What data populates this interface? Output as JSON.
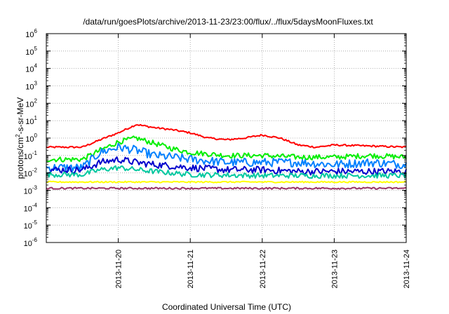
{
  "chart_data": {
    "type": "line",
    "title": "/data/run/goesPlots/archive/2013-11-23/23:00/flux/../flux/5daysMoonFluxes.txt",
    "xlabel": "Coordinated Universal Time (UTC)",
    "ylabel": "protons/cm²-s-sr-MeV",
    "ylabel_parts": {
      "pre": "protons/cm",
      "sup": "2",
      "post": "-s-sr-MeV"
    },
    "yscale": "log",
    "ylim": [
      1e-06,
      1000000.0
    ],
    "xlim": [
      "2013-11-19 00:00",
      "2013-11-24 00:00"
    ],
    "x_ticks": [
      "2013-11-20",
      "2013-11-21",
      "2013-11-22",
      "2013-11-23",
      "2013-11-24"
    ],
    "y_ticks": [
      {
        "base": "10",
        "exp": "-6"
      },
      {
        "base": "10",
        "exp": "-5"
      },
      {
        "base": "10",
        "exp": "-4"
      },
      {
        "base": "10",
        "exp": "-3"
      },
      {
        "base": "10",
        "exp": "-2"
      },
      {
        "base": "10",
        "exp": "-1"
      },
      {
        "base": "10",
        "exp": "0"
      },
      {
        "base": "10",
        "exp": "1"
      },
      {
        "base": "10",
        "exp": "2"
      },
      {
        "base": "10",
        "exp": "3"
      },
      {
        "base": "10",
        "exp": "4"
      },
      {
        "base": "10",
        "exp": "5"
      },
      {
        "base": "10",
        "exp": "6"
      }
    ],
    "grid": true,
    "legend": "none",
    "series": [
      {
        "color": "#ff0000",
        "noise": 0.05,
        "x": [
          "2013-11-19 00:00",
          "2013-11-19 12:00",
          "2013-11-19 18:00",
          "2013-11-20 00:00",
          "2013-11-20 06:00",
          "2013-11-20 12:00",
          "2013-11-20 18:00",
          "2013-11-21 00:00",
          "2013-11-21 06:00",
          "2013-11-21 12:00",
          "2013-11-21 18:00",
          "2013-11-22 00:00",
          "2013-11-22 06:00",
          "2013-11-22 12:00",
          "2013-11-22 18:00",
          "2013-11-23 00:00",
          "2013-11-23 12:00",
          "2013-11-24 00:00"
        ],
        "y": [
          0.3,
          0.3,
          0.8,
          2,
          6,
          4,
          3,
          2,
          1,
          0.8,
          1,
          1.5,
          1,
          0.4,
          0.3,
          0.4,
          0.35,
          0.3
        ]
      },
      {
        "color": "#00ee00",
        "noise": 0.15,
        "x": [
          "2013-11-19 00:00",
          "2013-11-19 12:00",
          "2013-11-19 18:00",
          "2013-11-20 00:00",
          "2013-11-20 06:00",
          "2013-11-20 12:00",
          "2013-11-20 18:00",
          "2013-11-21 00:00",
          "2013-11-21 12:00",
          "2013-11-22 00:00",
          "2013-11-22 12:00",
          "2013-11-23 00:00",
          "2013-11-23 12:00",
          "2013-11-24 00:00"
        ],
        "y": [
          0.06,
          0.06,
          0.2,
          0.6,
          1,
          0.5,
          0.25,
          0.15,
          0.1,
          0.1,
          0.08,
          0.08,
          0.1,
          0.08
        ]
      },
      {
        "color": "#0080ff",
        "noise": 0.25,
        "x": [
          "2013-11-19 00:00",
          "2013-11-19 12:00",
          "2013-11-19 18:00",
          "2013-11-20 00:00",
          "2013-11-20 06:00",
          "2013-11-20 12:00",
          "2013-11-20 18:00",
          "2013-11-21 00:00",
          "2013-11-21 12:00",
          "2013-11-22 00:00",
          "2013-11-22 12:00",
          "2013-11-23 00:00",
          "2013-11-23 12:00",
          "2013-11-24 00:00"
        ],
        "y": [
          0.02,
          0.02,
          0.15,
          0.3,
          0.2,
          0.1,
          0.08,
          0.06,
          0.04,
          0.04,
          0.04,
          0.03,
          0.04,
          0.03
        ]
      },
      {
        "color": "#0000cc",
        "noise": 0.2,
        "x": [
          "2013-11-19 00:00",
          "2013-11-19 12:00",
          "2013-11-19 18:00",
          "2013-11-20 00:00",
          "2013-11-20 06:00",
          "2013-11-20 12:00",
          "2013-11-20 18:00",
          "2013-11-21 00:00",
          "2013-11-21 12:00",
          "2013-11-22 00:00",
          "2013-11-22 12:00",
          "2013-11-23 00:00",
          "2013-11-23 12:00",
          "2013-11-24 00:00"
        ],
        "y": [
          0.015,
          0.015,
          0.04,
          0.06,
          0.04,
          0.03,
          0.025,
          0.02,
          0.015,
          0.015,
          0.012,
          0.012,
          0.012,
          0.012
        ]
      },
      {
        "color": "#00c8a0",
        "noise": 0.15,
        "x": [
          "2013-11-19 00:00",
          "2013-11-19 12:00",
          "2013-11-19 18:00",
          "2013-11-20 00:00",
          "2013-11-20 12:00",
          "2013-11-21 00:00",
          "2013-11-22 00:00",
          "2013-11-23 00:00",
          "2013-11-24 00:00"
        ],
        "y": [
          0.008,
          0.008,
          0.015,
          0.02,
          0.012,
          0.008,
          0.007,
          0.007,
          0.007
        ]
      },
      {
        "color": "#ffff00",
        "noise": 0.04,
        "x": [
          "2013-11-19 00:00",
          "2013-11-20 00:00",
          "2013-11-21 00:00",
          "2013-11-22 00:00",
          "2013-11-23 00:00",
          "2013-11-24 00:00"
        ],
        "y": [
          0.003,
          0.003,
          0.003,
          0.003,
          0.003,
          0.003
        ]
      },
      {
        "color": "#993366",
        "noise": 0.05,
        "x": [
          "2013-11-19 00:00",
          "2013-11-20 00:00",
          "2013-11-21 00:00",
          "2013-11-22 00:00",
          "2013-11-23 00:00",
          "2013-11-24 00:00"
        ],
        "y": [
          0.0013,
          0.0013,
          0.0013,
          0.0013,
          0.0013,
          0.0013
        ]
      }
    ]
  }
}
